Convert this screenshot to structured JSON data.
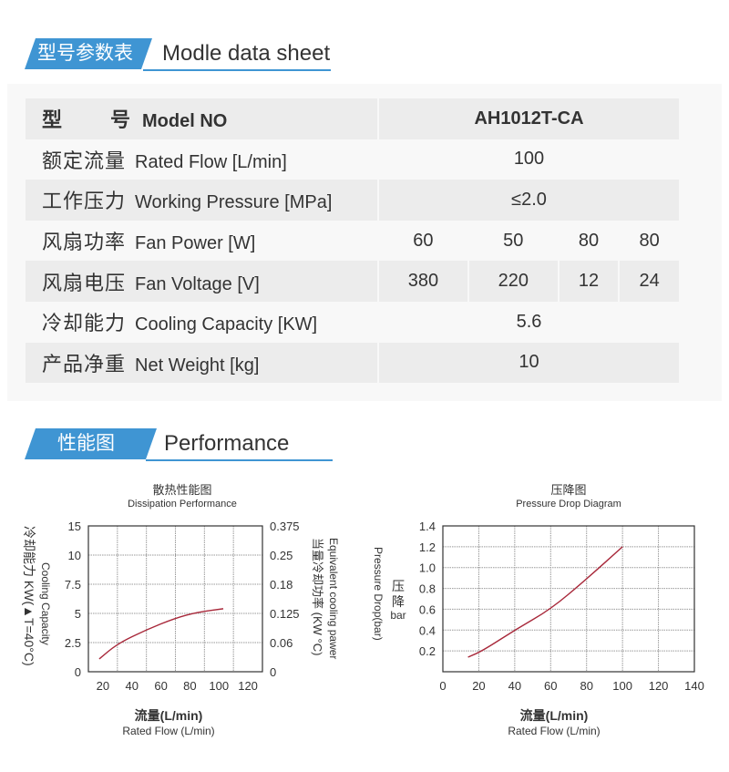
{
  "sections": {
    "datasheet": {
      "tag": "型号参数表",
      "title": "Modle data sheet"
    },
    "performance": {
      "tag": "性能图",
      "title": "Performance"
    }
  },
  "accent_color": "#3f95d3",
  "table": {
    "rows": [
      {
        "cn_a": "型",
        "cn_b": "号",
        "en": "Model NO",
        "values": [
          "AH1012T-CA"
        ]
      },
      {
        "cn": "额定流量",
        "en": "Rated Flow [L/min]",
        "values": [
          "100"
        ]
      },
      {
        "cn": "工作压力",
        "en": "Working Pressure [MPa]",
        "values": [
          "≤2.0"
        ]
      },
      {
        "cn": "风扇功率",
        "en": "Fan Power [W]",
        "values": [
          "60",
          "50",
          "80",
          "80"
        ]
      },
      {
        "cn": "风扇电压",
        "en": "Fan Voltage [V]",
        "values": [
          "380",
          "220",
          "12",
          "24"
        ]
      },
      {
        "cn": "冷却能力",
        "en": "Cooling Capacity [KW]",
        "values": [
          "5.6"
        ]
      },
      {
        "cn": "产品净重",
        "en": "Net Weight [kg]",
        "values": [
          "10"
        ]
      }
    ]
  },
  "chart_data": [
    {
      "type": "line",
      "title": "散热性能图",
      "subtitle": "Dissipation Performance",
      "xlabel": "流量(L/min)",
      "xlabel_en": "Rated Flow (L/min)",
      "ylabel": "冷却能力 KW(▲T=40°C)",
      "ylabel_en": "Cooling Capacity",
      "y2label": "当量冷却功率 (KW °C)",
      "y2label_en": "Equivalent cooling pawer",
      "x_ticks": [
        "20",
        "40",
        "60",
        "80",
        "100",
        "120"
      ],
      "y_ticks": [
        "0",
        "2.5",
        "5",
        "7.5",
        "10",
        "15"
      ],
      "y2_ticks": [
        "0",
        "0.06",
        "0.125",
        "0.18",
        "0.25",
        "0.375"
      ],
      "grid": true,
      "line_color": "#a8283a",
      "series": [
        {
          "x": [
            17.5,
            30,
            50,
            70,
            85,
            103
          ],
          "y": [
            1.1,
            2.4,
            3.6,
            4.6,
            5.1,
            5.4
          ]
        }
      ]
    },
    {
      "type": "line",
      "title": "压降图",
      "subtitle": "Pressure Drop Diagram",
      "xlabel": "流量(L/min)",
      "xlabel_en": "Rated Flow (L/min)",
      "ylabel": "压降",
      "ylabel_unit": "bar",
      "ylabel_en": "Pressure Drop(bar)",
      "x_ticks": [
        "0",
        "20",
        "40",
        "60",
        "80",
        "100",
        "120",
        "140"
      ],
      "y_ticks": [
        "0.2",
        "0.4",
        "0.6",
        "0.8",
        "1.0",
        "1.2",
        "1.4"
      ],
      "xlim": [
        0,
        140
      ],
      "ylim": [
        0,
        1.4
      ],
      "grid": true,
      "line_color": "#a8283a",
      "series": [
        {
          "x": [
            14,
            22,
            41,
            60,
            80,
            100
          ],
          "y": [
            0.14,
            0.2,
            0.41,
            0.6,
            0.89,
            1.2
          ]
        }
      ]
    }
  ]
}
